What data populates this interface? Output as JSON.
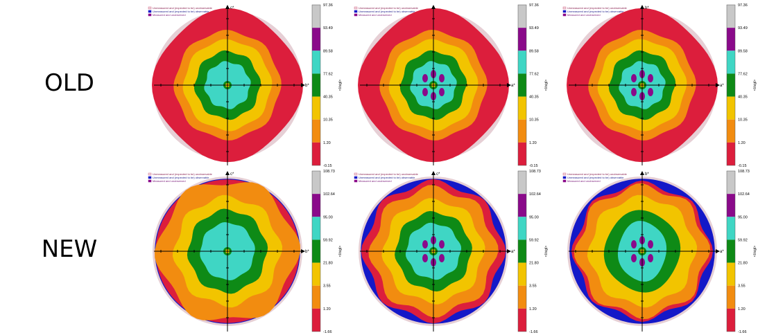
{
  "row_labels": {
    "old": "OLD",
    "new": "NEW"
  },
  "legend": {
    "unexpected_unobservable": "Unmeasured and (expected to be) unobservable",
    "unmeasured_observable": "Unmeasured and (expected to be) observable",
    "measured_unobserved": "Measured and unobserved"
  },
  "colors": {
    "grey": "#c8c8c8",
    "purple": "#8a0a8a",
    "cyan": "#3fd6c4",
    "green": "#0e8a16",
    "yellow": "#f2c400",
    "orange": "#f28c10",
    "red": "#dc1e3c",
    "blue": "#1418c8",
    "pink_dots": "#e6cfd5"
  },
  "scales": {
    "old": [
      "97.36",
      "93.49",
      "89.58",
      "77.62",
      "40.35",
      "10.35",
      "1.20",
      "-0.15"
    ],
    "new": [
      "108.73",
      "102.64",
      "95.00",
      "59.92",
      "21.80",
      "3.55",
      "1.20",
      "-1.66"
    ]
  },
  "scale_axis_label": "<I/sigI>",
  "panels": [
    {
      "id": "old-1",
      "row": "old",
      "up": "c*",
      "right": "b*"
    },
    {
      "id": "old-2",
      "row": "old",
      "up": "",
      "right": "a*"
    },
    {
      "id": "old-3",
      "row": "old",
      "up": "b*",
      "right": "a*"
    },
    {
      "id": "new-1",
      "row": "new",
      "up": "c*",
      "right": "b*"
    },
    {
      "id": "new-2",
      "row": "new",
      "up": "c*",
      "right": "a*"
    },
    {
      "id": "new-3",
      "row": "new",
      "up": "b*",
      "right": "a*"
    }
  ]
}
